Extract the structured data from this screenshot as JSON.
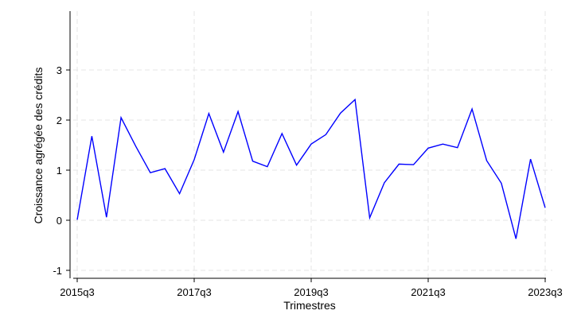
{
  "chart_data": {
    "type": "line",
    "title": "",
    "xlabel": "Trimestres",
    "ylabel": "Croissance agrégée des crédits",
    "x": [
      "2015q3",
      "2015q4",
      "2016q1",
      "2016q2",
      "2016q3",
      "2016q4",
      "2017q1",
      "2017q2",
      "2017q3",
      "2017q4",
      "2018q1",
      "2018q2",
      "2018q3",
      "2018q4",
      "2019q1",
      "2019q2",
      "2019q3",
      "2019q4",
      "2020q1",
      "2020q2",
      "2020q3",
      "2020q4",
      "2021q1",
      "2021q2",
      "2021q3",
      "2021q4",
      "2022q1",
      "2022q2",
      "2022q3",
      "2022q4",
      "2023q1",
      "2023q2",
      "2023q3"
    ],
    "series": [
      {
        "values": [
          0.01,
          1.68,
          0.06,
          2.05,
          1.48,
          0.95,
          1.03,
          0.53,
          1.21,
          2.13,
          1.36,
          2.17,
          1.18,
          1.07,
          1.73,
          1.1,
          1.52,
          1.71,
          2.14,
          2.41,
          0.05,
          0.75,
          1.12,
          1.11,
          1.44,
          1.52,
          1.45,
          2.22,
          1.19,
          0.74,
          -0.37,
          1.22,
          0.25
        ],
        "color": "#0000ff"
      }
    ],
    "xticks": [
      "2015q3",
      "2017q3",
      "2019q3",
      "2021q3",
      "2023q3"
    ],
    "yticks": [
      -1,
      0,
      1,
      2,
      3
    ],
    "ylim": [
      -1.15,
      4.2
    ],
    "grid": true,
    "legend": "none"
  }
}
